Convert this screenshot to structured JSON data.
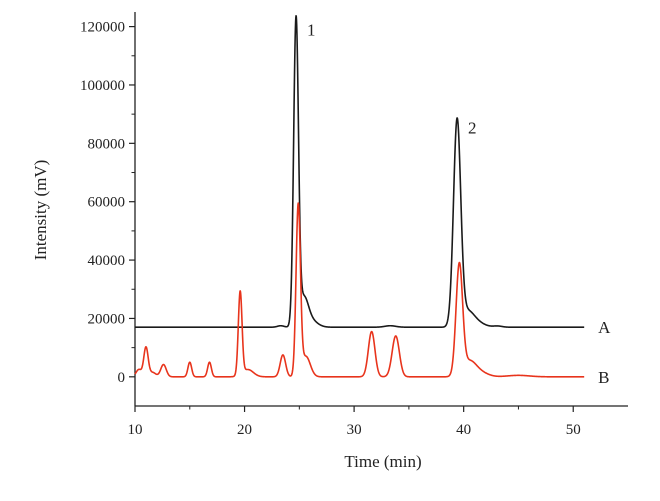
{
  "chart_data": {
    "type": "line",
    "xlabel": "Time (min)",
    "ylabel": "Intensity (mV)",
    "xlim": [
      10,
      55
    ],
    "ylim": [
      -10000,
      125000
    ],
    "x_ticks": [
      "10",
      "20",
      "30",
      "40",
      "50"
    ],
    "y_ticks": [
      "0",
      "20000",
      "40000",
      "60000",
      "80000",
      "100000",
      "120000"
    ],
    "grid": false,
    "legend": "none",
    "series": [
      {
        "name": "A",
        "color": "#1a1a1a",
        "baseline": 17000,
        "peaks": [
          {
            "rt": 23.3,
            "height": 500,
            "width": 0.3
          },
          {
            "rt": 24.7,
            "height": 104500,
            "width": 0.22
          },
          {
            "rt": 25.4,
            "height": 9000,
            "width": 0.4
          },
          {
            "rt": 26.0,
            "height": 2500,
            "width": 0.6
          },
          {
            "rt": 33.3,
            "height": 500,
            "width": 0.5
          },
          {
            "rt": 39.4,
            "height": 70000,
            "width": 0.33
          },
          {
            "rt": 40.3,
            "height": 5000,
            "width": 0.6
          },
          {
            "rt": 41.2,
            "height": 1500,
            "width": 0.7
          },
          {
            "rt": 43.1,
            "height": 400,
            "width": 0.4
          }
        ]
      },
      {
        "name": "B",
        "color": "#e8341c",
        "baseline": 0,
        "peaks": [
          {
            "rt": 10.35,
            "height": 2500,
            "width": 0.25
          },
          {
            "rt": 11.0,
            "height": 10000,
            "width": 0.2
          },
          {
            "rt": 11.6,
            "height": 1500,
            "width": 0.3
          },
          {
            "rt": 12.6,
            "height": 4200,
            "width": 0.25
          },
          {
            "rt": 15.0,
            "height": 5000,
            "width": 0.17
          },
          {
            "rt": 16.8,
            "height": 5000,
            "width": 0.17
          },
          {
            "rt": 19.6,
            "height": 28500,
            "width": 0.17
          },
          {
            "rt": 20.3,
            "height": 2500,
            "width": 0.5
          },
          {
            "rt": 23.5,
            "height": 7500,
            "width": 0.25
          },
          {
            "rt": 24.9,
            "height": 58000,
            "width": 0.2
          },
          {
            "rt": 25.6,
            "height": 7000,
            "width": 0.4
          },
          {
            "rt": 31.6,
            "height": 15500,
            "width": 0.3
          },
          {
            "rt": 33.8,
            "height": 14000,
            "width": 0.33
          },
          {
            "rt": 39.6,
            "height": 37500,
            "width": 0.3
          },
          {
            "rt": 40.5,
            "height": 5000,
            "width": 0.6
          },
          {
            "rt": 41.5,
            "height": 1500,
            "width": 0.7
          },
          {
            "rt": 45.0,
            "height": 500,
            "width": 1.0
          }
        ]
      }
    ],
    "annotations": [
      {
        "text": "1",
        "x": 25.7,
        "y": 119000
      },
      {
        "text": "2",
        "x": 40.4,
        "y": 85500
      }
    ]
  }
}
